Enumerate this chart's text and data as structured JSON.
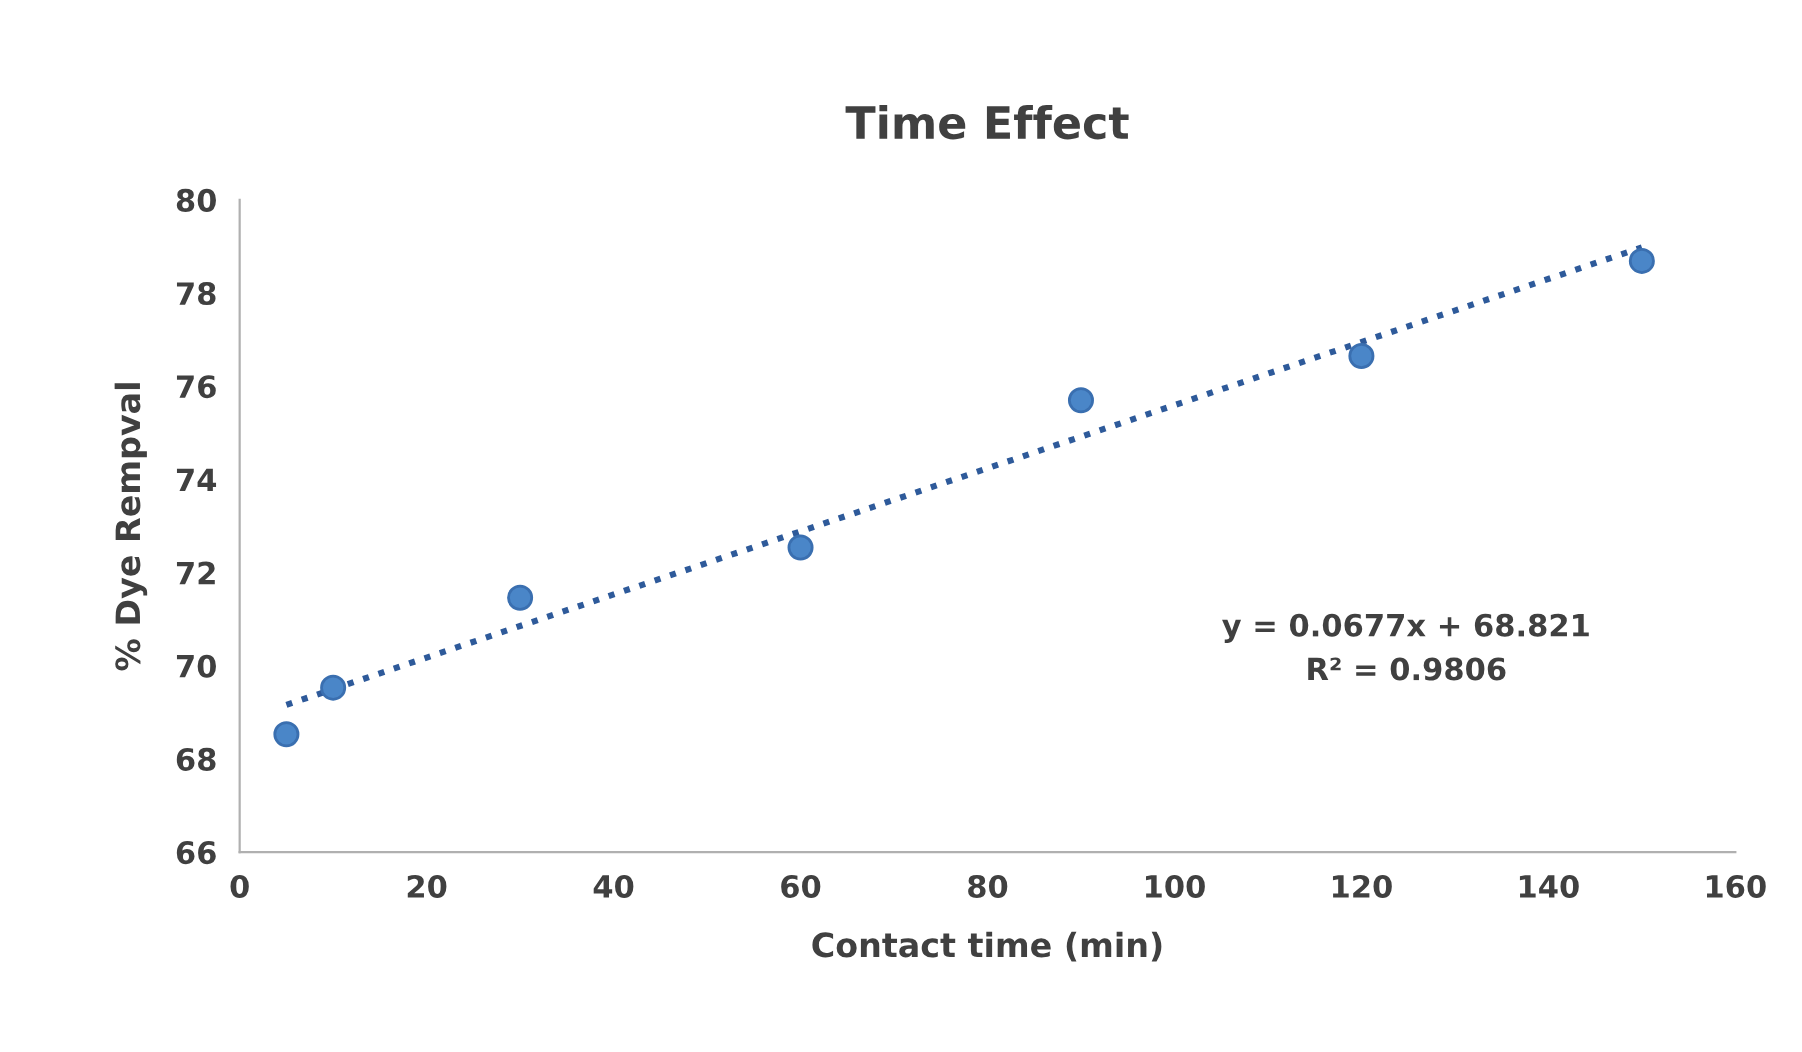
{
  "chart_data": {
    "type": "scatter",
    "title": "Time Effect",
    "xlabel": "Contact time (min)",
    "ylabel": "% Dye Rempval",
    "series": [
      {
        "color": "#4a86c8",
        "x": [
          5,
          10,
          30,
          60,
          90,
          120,
          150
        ],
        "values": [
          68.53,
          69.53,
          71.46,
          72.54,
          75.7,
          76.65,
          78.69
        ],
        "marker": "circle"
      },
      {
        "type": "line",
        "color": "#2e5a9a",
        "x": [
          5,
          150
        ],
        "values": [
          69.16,
          78.98
        ],
        "line_style": "dotted"
      }
    ],
    "annotations": [
      {
        "text": "y = 0.0677x + 68.821\nR² = 0.9806"
      }
    ],
    "xlim": [
      0,
      160
    ],
    "xticks": [
      0,
      20,
      40,
      60,
      80,
      100,
      120,
      140,
      160
    ],
    "ylim": [
      66,
      80
    ],
    "yticks": [
      66,
      68,
      70,
      72,
      74,
      76,
      78,
      80
    ],
    "grid": false,
    "legend": false
  }
}
